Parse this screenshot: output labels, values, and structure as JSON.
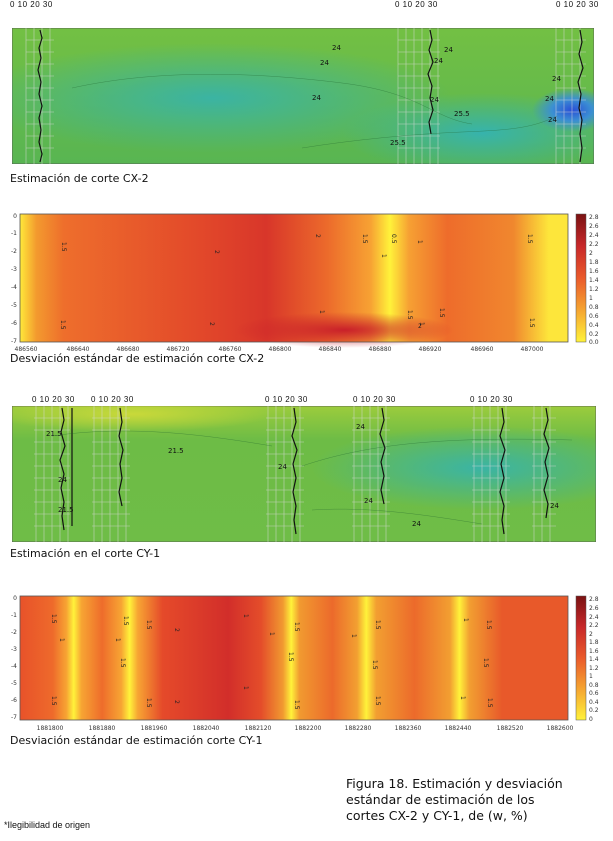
{
  "panel1": {
    "scale_labels": [
      "0 10 20 30",
      "0 10 20 30",
      "0 10 20 30"
    ],
    "contours": [
      "24",
      "24",
      "24",
      "24",
      "24",
      "24",
      "25.5",
      "25.5",
      "24",
      "24",
      "24"
    ],
    "caption": "Estimación de corte CX-2"
  },
  "panel2": {
    "y_ticks": [
      "0",
      "-1",
      "-2",
      "-3",
      "-4",
      "-5",
      "-6",
      "-7"
    ],
    "x_ticks": [
      "486560",
      "486640",
      "486680",
      "486720",
      "486760",
      "486800",
      "486840",
      "486880",
      "486920",
      "486960",
      "487000"
    ],
    "colorbar_ticks": [
      "2.8",
      "2.6",
      "2.4",
      "2.2",
      "2",
      "1.8",
      "1.6",
      "1.4",
      "1.2",
      "1",
      "0.8",
      "0.6",
      "0.4",
      "0.2",
      "0.0"
    ],
    "contours": [
      "1.5",
      "1.5",
      "2",
      "2",
      "2",
      "1",
      "0.5",
      "1",
      "1",
      "1.5",
      "1.5",
      "1",
      "1.5",
      "2",
      "1.5",
      "1.5"
    ],
    "caption": "Desviación estándar de estimación corte CX-2"
  },
  "panel3": {
    "scale_labels": [
      "0 10 20 30",
      "0 10 20 30",
      "0 10 20 30",
      "0 10 20 30",
      "0 10 20 30"
    ],
    "contours": [
      "21.5",
      "21.5",
      "21.5",
      "24",
      "24",
      "24",
      "24",
      "24",
      "24"
    ],
    "caption": "Estimación en el corte CY-1"
  },
  "panel4": {
    "y_ticks": [
      "0",
      "-1",
      "-2",
      "-3",
      "-4",
      "-5",
      "-6",
      "-7"
    ],
    "x_ticks": [
      "1881800",
      "1881880",
      "1881960",
      "1882040",
      "1882120",
      "1882200",
      "1882280",
      "1882360",
      "1882440",
      "1882520",
      "1882600"
    ],
    "colorbar_ticks": [
      "2.8",
      "2.6",
      "2.4",
      "2.2",
      "2",
      "1.8",
      "1.6",
      "1.4",
      "1.2",
      "1",
      "0.8",
      "0.6",
      "0.4",
      "0.2",
      "0"
    ],
    "contours": [
      "1.5",
      "1",
      "1.5",
      "1.5",
      "1",
      "1.5",
      "2",
      "2",
      "1",
      "1.5",
      "1",
      "1.5",
      "1",
      "1.5",
      "1",
      "1.5",
      "1.5",
      "1",
      "1.5",
      "1.5",
      "1",
      "1.5",
      "1.5",
      "1.5",
      "1.5"
    ],
    "caption": "Desviación estándar de estimación corte CY-1"
  },
  "figure": {
    "lines": [
      "Figura 18. Estimación y desviación",
      "estándar de estimación de los",
      "cortes CX-2 y CY-1, de (w, %)"
    ]
  },
  "footnote": "*Ilegibilidad de origen",
  "colors": {
    "green": "#6dbb46",
    "teal": "#3fb5a6",
    "blue": "#2f6fd8",
    "red": "#d9382b",
    "orange": "#ef6a2a",
    "yellow": "#fff23a"
  }
}
